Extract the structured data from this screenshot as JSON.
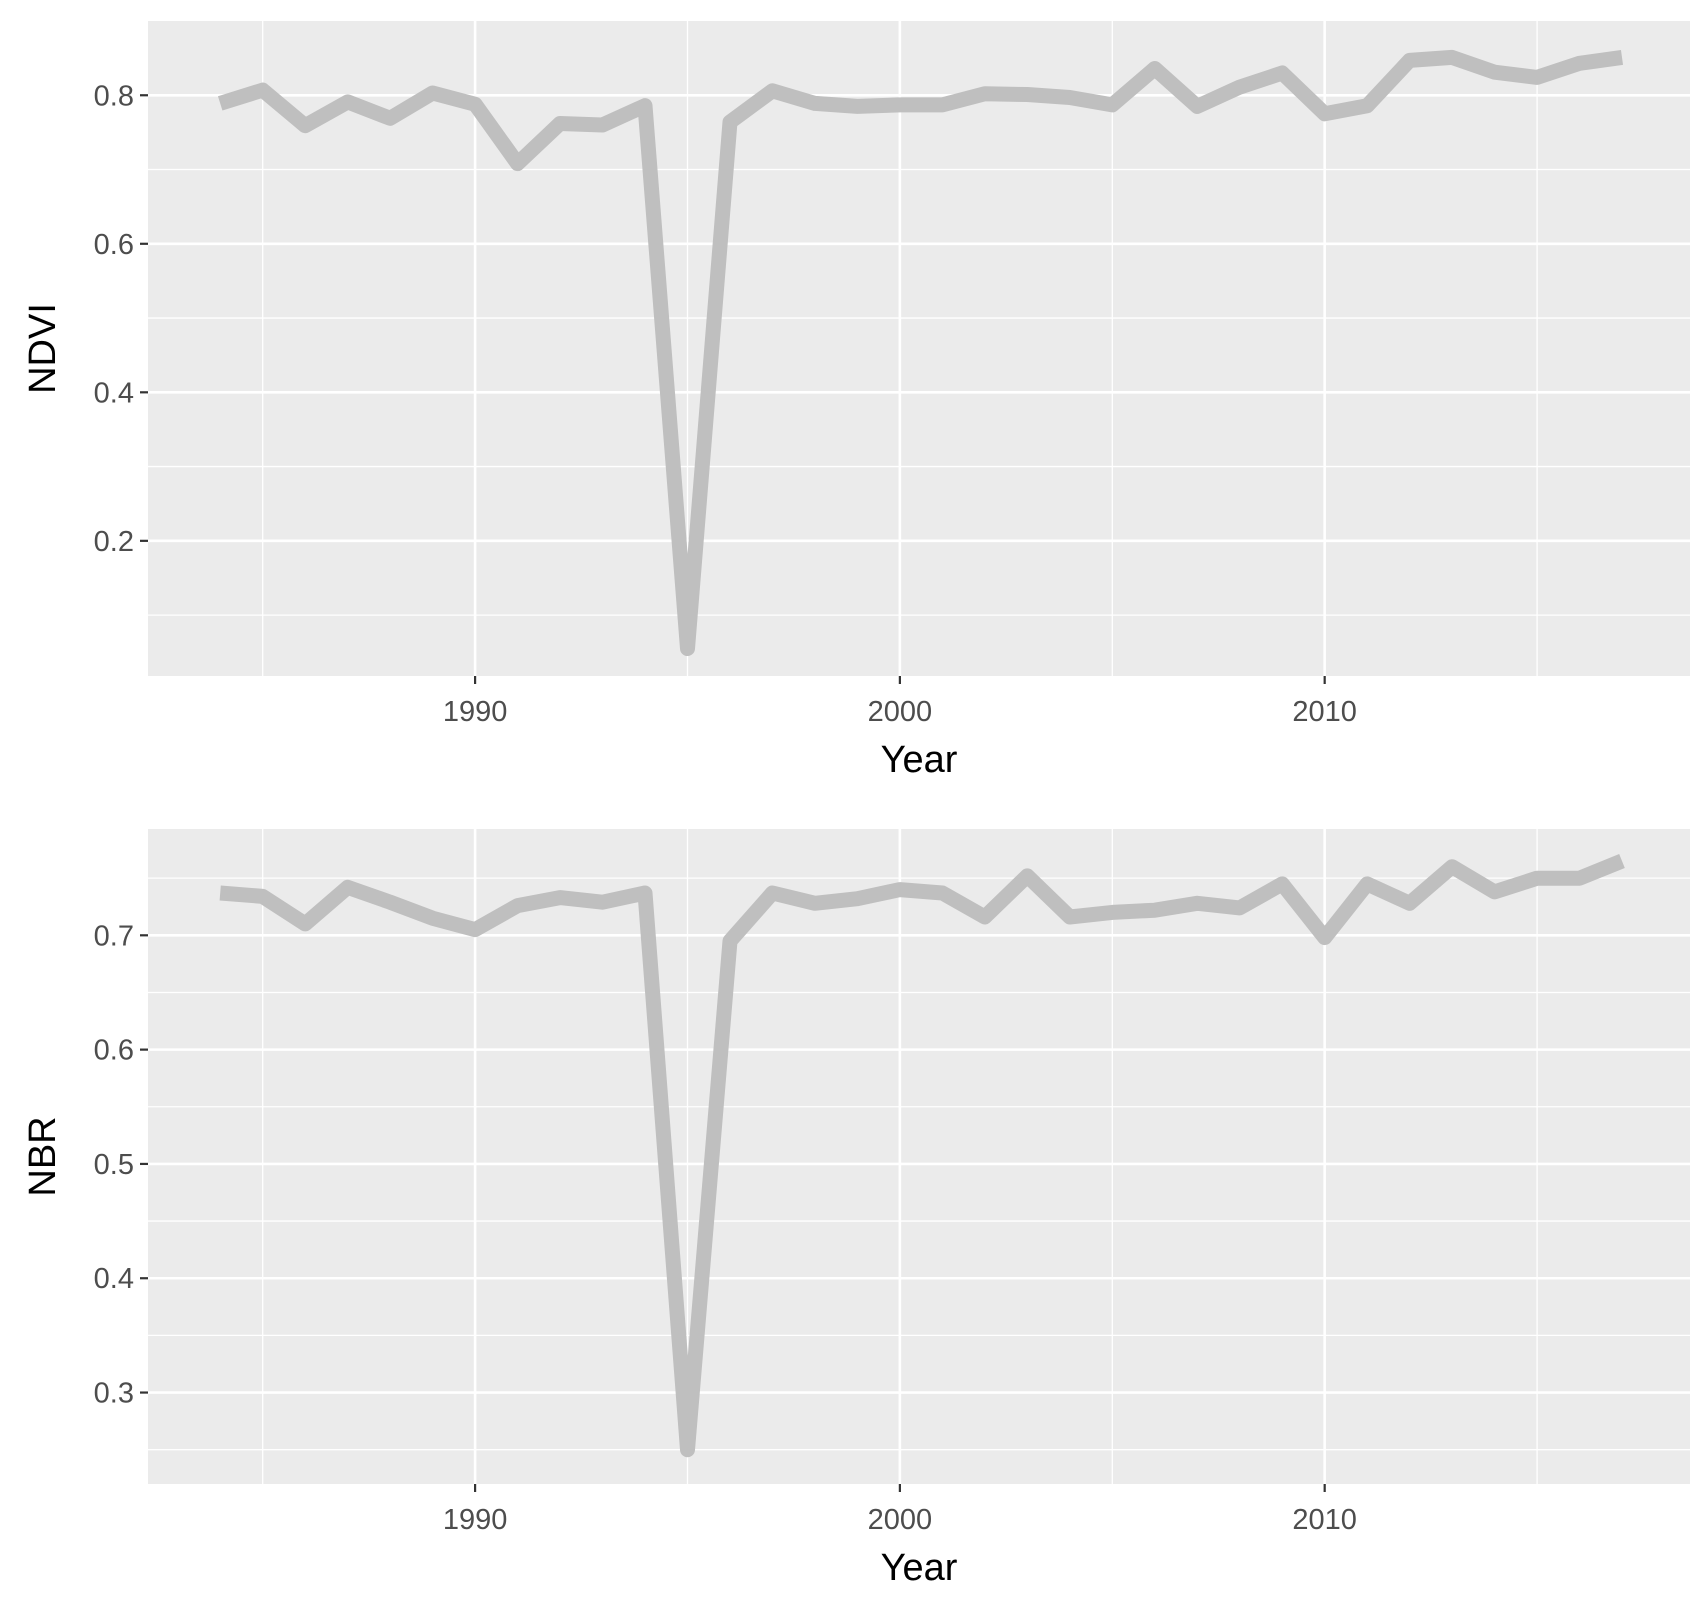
{
  "chart_data": [
    {
      "type": "line",
      "xlabel": "Year",
      "ylabel": "NDVI",
      "xlim": [
        1982.3,
        2018.6
      ],
      "ylim": [
        0.018,
        0.9
      ],
      "x_major_ticks": [
        1990,
        2000,
        2010
      ],
      "x_minor_ticks": [
        1985,
        1995,
        2005,
        2015
      ],
      "y_major_ticks": [
        0.2,
        0.4,
        0.6,
        0.8
      ],
      "y_minor_ticks": [
        0.1,
        0.3,
        0.5,
        0.7
      ],
      "x_tick_labels": [
        "1990",
        "2000",
        "2010"
      ],
      "y_tick_labels": [
        "0.2",
        "0.4",
        "0.6",
        "0.8"
      ],
      "grid": true,
      "line_color": "#bfbfbf",
      "x": [
        1984,
        1985,
        1986,
        1987,
        1988,
        1989,
        1990,
        1991,
        1992,
        1993,
        1994,
        1995,
        1996,
        1997,
        1998,
        1999,
        2000,
        2001,
        2002,
        2003,
        2004,
        2005,
        2006,
        2007,
        2008,
        2009,
        2010,
        2011,
        2012,
        2013,
        2014,
        2015,
        2016,
        2017
      ],
      "y": [
        0.789,
        0.807,
        0.759,
        0.791,
        0.769,
        0.803,
        0.788,
        0.708,
        0.762,
        0.76,
        0.786,
        0.055,
        0.764,
        0.806,
        0.789,
        0.785,
        0.787,
        0.787,
        0.802,
        0.801,
        0.797,
        0.787,
        0.836,
        0.785,
        0.811,
        0.83,
        0.775,
        0.786,
        0.847,
        0.851,
        0.831,
        0.824,
        0.843,
        0.851
      ]
    },
    {
      "type": "line",
      "xlabel": "Year",
      "ylabel": "NBR",
      "xlim": [
        1982.3,
        2018.6
      ],
      "ylim": [
        0.22,
        0.793
      ],
      "x_major_ticks": [
        1990,
        2000,
        2010
      ],
      "x_minor_ticks": [
        1985,
        1995,
        2005,
        2015
      ],
      "y_major_ticks": [
        0.3,
        0.4,
        0.5,
        0.6,
        0.7
      ],
      "y_minor_ticks": [
        0.25,
        0.35,
        0.45,
        0.55,
        0.65,
        0.75
      ],
      "x_tick_labels": [
        "1990",
        "2000",
        "2010"
      ],
      "y_tick_labels": [
        "0.3",
        "0.4",
        "0.5",
        "0.6",
        "0.7"
      ],
      "grid": true,
      "line_color": "#bfbfbf",
      "x": [
        1984,
        1985,
        1986,
        1987,
        1988,
        1989,
        1990,
        1991,
        1992,
        1993,
        1994,
        1995,
        1996,
        1997,
        1998,
        1999,
        2000,
        2001,
        2002,
        2003,
        2004,
        2005,
        2006,
        2007,
        2008,
        2009,
        2010,
        2011,
        2012,
        2013,
        2014,
        2015,
        2016,
        2017
      ],
      "y": [
        0.737,
        0.734,
        0.71,
        0.742,
        0.729,
        0.715,
        0.705,
        0.726,
        0.733,
        0.729,
        0.737,
        0.25,
        0.695,
        0.737,
        0.728,
        0.732,
        0.74,
        0.737,
        0.716,
        0.752,
        0.716,
        0.72,
        0.722,
        0.728,
        0.724,
        0.745,
        0.698,
        0.745,
        0.728,
        0.76,
        0.738,
        0.75,
        0.75,
        0.765
      ]
    }
  ]
}
